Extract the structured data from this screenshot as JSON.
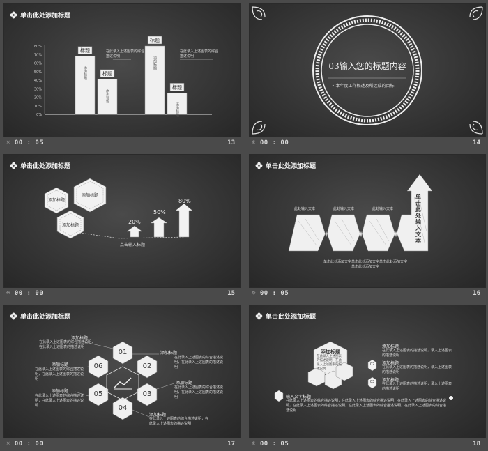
{
  "cells": [
    {
      "time": "00 : 05",
      "num": "13",
      "title": "单击此处添加标题"
    },
    {
      "time": "00 : 00",
      "num": "14"
    },
    {
      "time": "00 : 00",
      "num": "15",
      "title": "单击此处添加标题"
    },
    {
      "time": "00 : 05",
      "num": "16",
      "title": "单击此处添加标题"
    },
    {
      "time": "00 : 00",
      "num": "17",
      "title": "单击此处添加标题"
    },
    {
      "time": "00 : 05",
      "num": "18",
      "title": "单击此处添加标题"
    }
  ],
  "s13": {
    "y_ticks": [
      "80%",
      "70%",
      "60%",
      "50%",
      "40%",
      "30%",
      "20%",
      "10%",
      "0%"
    ],
    "bars": [
      {
        "label": "标题",
        "value": 68,
        "inner": "添加标题"
      },
      {
        "label": "标题",
        "value": 41,
        "inner": "添加标题"
      },
      {
        "label": "标题",
        "value": 80,
        "inner": "添加标题"
      },
      {
        "label": "标题",
        "value": 25,
        "inner": "添加标题"
      }
    ],
    "ann1": "在此录入上述图表的综合描述说明",
    "ann2": "在此录入上述图表的综合描述说明"
  },
  "s14": {
    "title": "03输入您的标题内容",
    "bullet": "本年度工作概述及所达成的目标"
  },
  "s15": {
    "hex1": "添加标题",
    "hex2": "添加标题",
    "hex3": "添加标题",
    "pct": [
      "20%",
      "50%",
      "80%"
    ],
    "bottom": "点击输入标题"
  },
  "s16": {
    "labels": [
      "此处输入文本",
      "此处输入文本",
      "此处输入文本"
    ],
    "arrow_text": "单击此处输入文本",
    "desc1": "单击此处添加文字单击此处添加文字单击此处添加文字",
    "desc2": "单击此处添加文字"
  },
  "s17": {
    "hexes": [
      "01",
      "02",
      "03",
      "04",
      "05",
      "06"
    ],
    "ring_labels": [
      "添加标题",
      "添加标题",
      "添加标题",
      "添加标题",
      "添加标题",
      "添加标题"
    ],
    "ring_desc": "在此录入上述图表的综合描述说明，在此录入上述图表的描述说明"
  },
  "s18": {
    "main": "添加标题",
    "main_desc": "在此录入上述图表的描述说明，在此录入上述图表的描述说明",
    "b02": "02",
    "b03": "03",
    "t1": "添加标题",
    "t2": "添加标题",
    "t3": "添加标题",
    "d1": "在此录入上述图表的描述说明，录入上述图表的描述说明",
    "small_title": "输入文字标题",
    "para": "在此录入上述图表的综合描述说明，在此录入上述图表的综合描述说明，在此录入上述图表的综合描述说明，在此录入上述图表的综合描述说明，在此录入上述图表的综合描述说明，在此录入上述图表的综合描述说明"
  }
}
